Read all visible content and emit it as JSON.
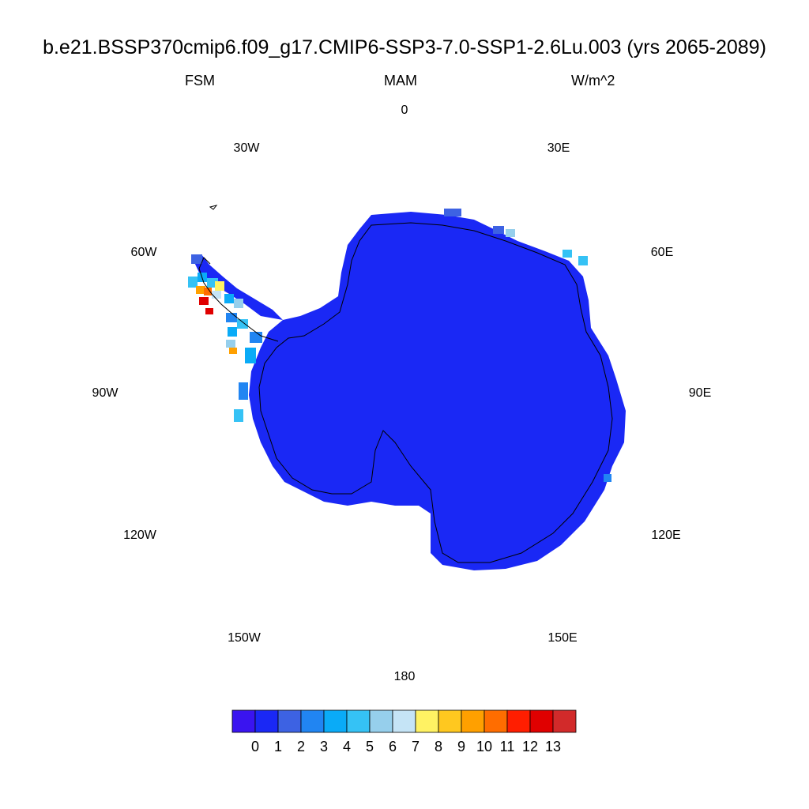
{
  "header": {
    "title": "b.e21.BSSP370cmip6.f09_g17.CMIP6-SSP3-7.0-SSP1-2.6Lu.003 (yrs 2065-2089)",
    "variable": "FSM",
    "season": "MAM",
    "units": "W/m^2"
  },
  "map": {
    "projection": "south-polar-stereographic",
    "dominant_value_color": "#1a28f5",
    "longitude_labels": [
      "0",
      "30E",
      "60E",
      "90E",
      "120E",
      "150E",
      "180",
      "150W",
      "120W",
      "90W",
      "60W",
      "30W"
    ]
  },
  "colorbar": {
    "colors": [
      "#3a14f0",
      "#1a28f5",
      "#3d62e3",
      "#2185f2",
      "#0aabf7",
      "#35c2f5",
      "#96cfec",
      "#c5e4f6",
      "#fff263",
      "#ffc81f",
      "#ffa000",
      "#ff6d00",
      "#ff1e00",
      "#e00000",
      "#d22a2a"
    ],
    "labels": [
      "0",
      "1",
      "2",
      "3",
      "4",
      "5",
      "6",
      "7",
      "8",
      "9",
      "10",
      "11",
      "12",
      "13"
    ]
  }
}
